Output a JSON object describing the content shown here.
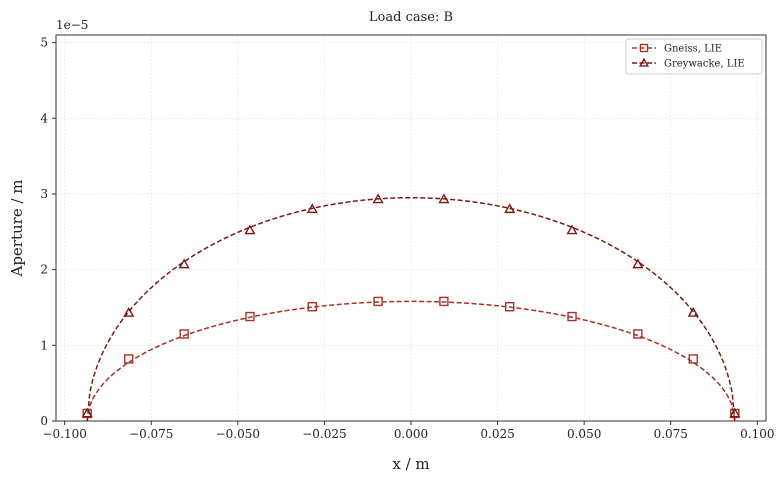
{
  "chart_data": {
    "type": "line",
    "title": "Load case: B",
    "xlabel": "x / m",
    "ylabel": "Aperture / m",
    "y_offset_label": "1e−5",
    "xlim": [
      -0.1025,
      0.1025
    ],
    "ylim": [
      0,
      5.1
    ],
    "x_ticks": [
      -0.1,
      -0.075,
      -0.05,
      -0.025,
      0.0,
      0.025,
      0.05,
      0.075,
      0.1
    ],
    "x_tick_labels": [
      "−0.100",
      "−0.075",
      "−0.050",
      "−0.025",
      "0.000",
      "0.025",
      "0.050",
      "0.075",
      "0.100"
    ],
    "y_ticks": [
      0,
      1,
      2,
      3,
      4,
      5
    ],
    "y_tick_labels": [
      "0",
      "1",
      "2",
      "3",
      "4",
      "5"
    ],
    "grid": true,
    "legend_position": "top-right",
    "half_length": 0.0935,
    "series": [
      {
        "name": "Gneiss, LIE",
        "marker": "square",
        "color": "#a83228",
        "peak": 1.58,
        "marker_x": [
          -0.0935,
          -0.0815,
          -0.0655,
          -0.0465,
          -0.0285,
          -0.0095,
          0.0095,
          0.0285,
          0.0465,
          0.0655,
          0.0815,
          0.0935
        ],
        "marker_y": [
          0.1,
          0.82,
          1.15,
          1.38,
          1.51,
          1.58,
          1.58,
          1.51,
          1.38,
          1.15,
          0.82,
          0.1
        ]
      },
      {
        "name": "Greywacke, LIE",
        "marker": "triangle",
        "color": "#7a1a14",
        "peak": 2.95,
        "marker_x": [
          -0.0935,
          -0.0815,
          -0.0655,
          -0.0465,
          -0.0285,
          -0.0095,
          0.0095,
          0.0285,
          0.0465,
          0.0655,
          0.0815,
          0.0935
        ],
        "marker_y": [
          0.1,
          1.43,
          2.07,
          2.52,
          2.8,
          2.93,
          2.93,
          2.8,
          2.52,
          2.07,
          1.43,
          0.1
        ]
      }
    ]
  }
}
